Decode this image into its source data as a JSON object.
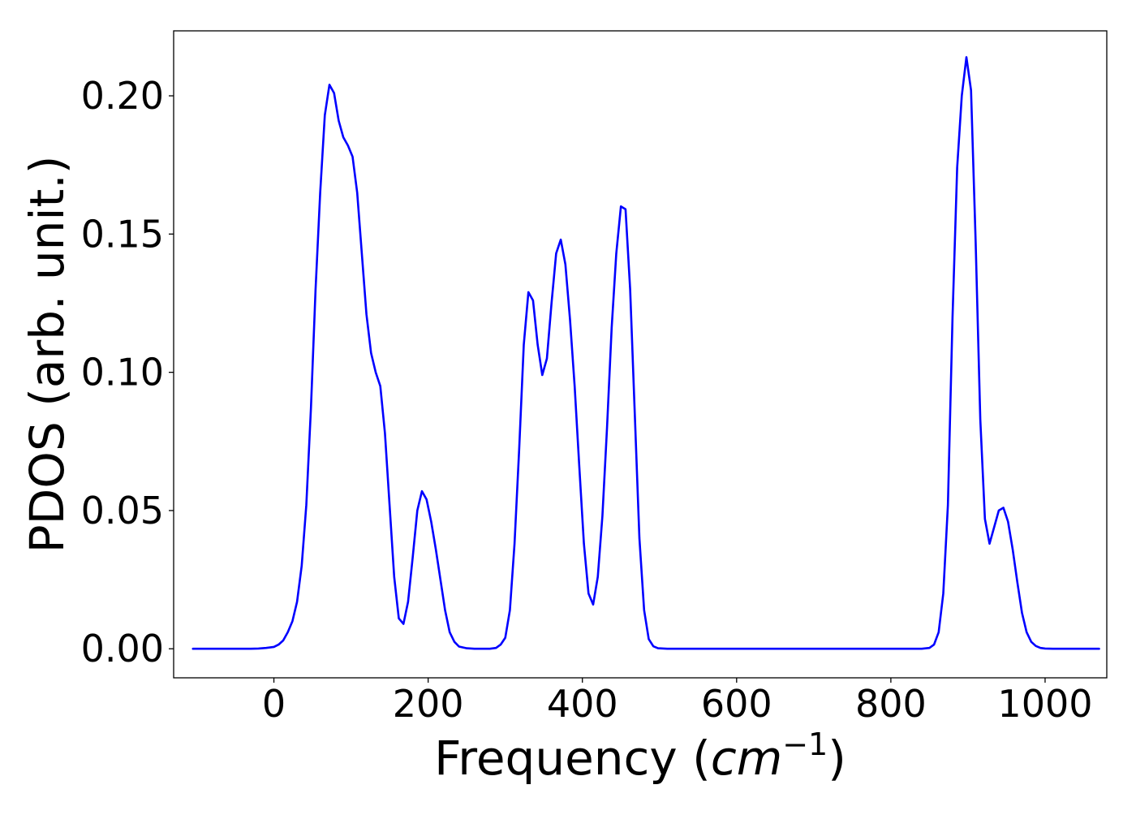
{
  "chart_data": {
    "type": "line",
    "title": "",
    "xlabel": "Frequency (cm⁻¹)",
    "xlabel_parts": {
      "prefix": "Frequency (",
      "italic": "cm",
      "sup": "−1",
      "suffix": ")"
    },
    "ylabel": "PDOS (arb. unit.)",
    "xlim": [
      -130,
      1080
    ],
    "ylim": [
      -0.0105,
      0.2235
    ],
    "xticks": [
      0,
      200,
      400,
      600,
      800,
      1000
    ],
    "xtick_labels": [
      "0",
      "200",
      "400",
      "600",
      "800",
      "1000"
    ],
    "yticks": [
      0.0,
      0.05,
      0.1,
      0.15,
      0.2
    ],
    "ytick_labels": [
      "0.00",
      "0.05",
      "0.10",
      "0.15",
      "0.20"
    ],
    "grid": false,
    "legend": "none",
    "series": [
      {
        "color": "#0000ff",
        "x": [
          -105,
          -80,
          -60,
          -40,
          -30,
          -20,
          -10,
          0,
          6,
          12,
          18,
          24,
          30,
          36,
          42,
          48,
          54,
          60,
          66,
          72,
          78,
          84,
          90,
          96,
          102,
          108,
          114,
          120,
          126,
          132,
          138,
          144,
          150,
          156,
          162,
          168,
          174,
          180,
          186,
          192,
          198,
          204,
          210,
          216,
          222,
          228,
          234,
          240,
          250,
          260,
          270,
          280,
          288,
          294,
          300,
          306,
          312,
          318,
          324,
          330,
          336,
          342,
          348,
          354,
          360,
          366,
          372,
          378,
          384,
          390,
          396,
          402,
          408,
          414,
          420,
          426,
          432,
          438,
          444,
          450,
          456,
          462,
          468,
          474,
          480,
          486,
          492,
          498,
          510,
          550,
          600,
          650,
          700,
          750,
          800,
          840,
          850,
          856,
          862,
          868,
          874,
          880,
          886,
          892,
          898,
          904,
          910,
          916,
          922,
          928,
          934,
          940,
          946,
          952,
          958,
          964,
          970,
          976,
          982,
          988,
          994,
          1000,
          1010,
          1030,
          1050,
          1070
        ],
        "y": [
          0.0,
          0.0,
          0.0,
          0.0,
          0.0,
          0.0001,
          0.0003,
          0.0007,
          0.0015,
          0.003,
          0.006,
          0.01,
          0.017,
          0.03,
          0.052,
          0.087,
          0.13,
          0.165,
          0.193,
          0.204,
          0.201,
          0.191,
          0.185,
          0.182,
          0.178,
          0.165,
          0.143,
          0.121,
          0.107,
          0.1,
          0.095,
          0.078,
          0.052,
          0.026,
          0.011,
          0.009,
          0.017,
          0.033,
          0.05,
          0.057,
          0.054,
          0.046,
          0.036,
          0.025,
          0.014,
          0.006,
          0.0025,
          0.0008,
          0.0002,
          0.0,
          0.0,
          0.0,
          0.0003,
          0.0015,
          0.004,
          0.014,
          0.038,
          0.072,
          0.11,
          0.129,
          0.126,
          0.11,
          0.099,
          0.105,
          0.125,
          0.143,
          0.148,
          0.139,
          0.119,
          0.095,
          0.066,
          0.038,
          0.02,
          0.016,
          0.026,
          0.048,
          0.08,
          0.116,
          0.143,
          0.16,
          0.159,
          0.13,
          0.085,
          0.04,
          0.014,
          0.0035,
          0.0009,
          0.0002,
          0.0,
          0.0,
          0.0,
          0.0,
          0.0,
          0.0,
          0.0,
          0.0,
          0.0003,
          0.0015,
          0.006,
          0.02,
          0.052,
          0.12,
          0.174,
          0.2,
          0.214,
          0.202,
          0.147,
          0.083,
          0.047,
          0.038,
          0.044,
          0.05,
          0.051,
          0.046,
          0.036,
          0.024,
          0.013,
          0.006,
          0.0025,
          0.001,
          0.0003,
          0.0001,
          0.0,
          0.0,
          0.0,
          0.0
        ]
      }
    ]
  }
}
